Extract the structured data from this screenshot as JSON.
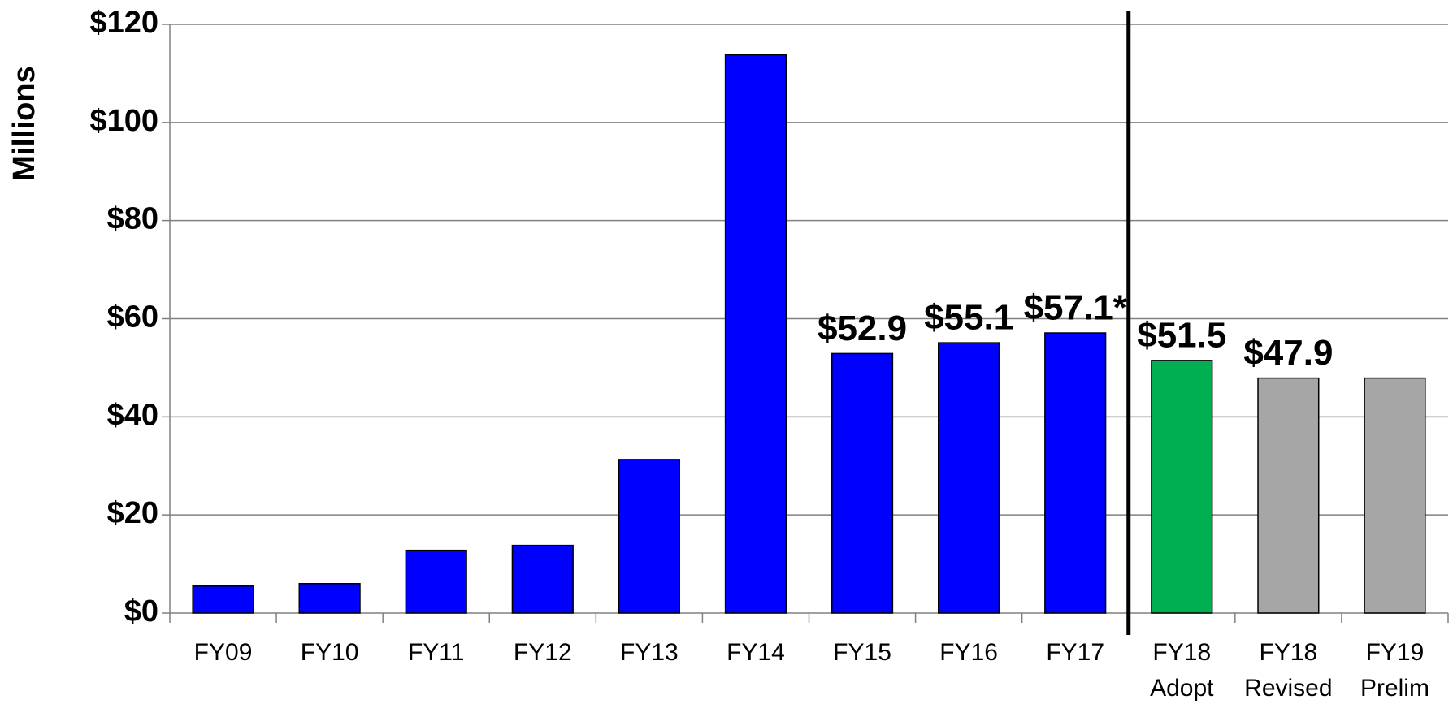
{
  "chart_data": {
    "type": "bar",
    "y_label": "Millions",
    "categories": [
      [
        "FY09"
      ],
      [
        "FY10"
      ],
      [
        "FY11"
      ],
      [
        "FY12"
      ],
      [
        "FY13"
      ],
      [
        "FY14"
      ],
      [
        "FY15"
      ],
      [
        "FY16"
      ],
      [
        "FY17"
      ],
      [
        "FY18",
        "Adopt"
      ],
      [
        "FY18",
        "Revised"
      ],
      [
        "FY19",
        "Prelim"
      ]
    ],
    "values": [
      5.5,
      6.0,
      12.8,
      13.8,
      31.3,
      113.8,
      52.9,
      55.1,
      57.1,
      51.5,
      47.9,
      47.9
    ],
    "value_labels": [
      null,
      null,
      null,
      null,
      null,
      null,
      "$52.9",
      "$55.1",
      "$57.1*",
      "$51.5",
      "$47.9",
      null
    ],
    "colors": [
      "#0000ff",
      "#0000ff",
      "#0000ff",
      "#0000ff",
      "#0000ff",
      "#0000ff",
      "#0000ff",
      "#0000ff",
      "#0000ff",
      "#00b050",
      "#a6a6a6",
      "#a6a6a6"
    ],
    "ylim": [
      0,
      120
    ],
    "yticks": [
      {
        "value": 0,
        "label": "$0"
      },
      {
        "value": 20,
        "label": "$20"
      },
      {
        "value": 40,
        "label": "$40"
      },
      {
        "value": 60,
        "label": "$60"
      },
      {
        "value": 80,
        "label": "$80"
      },
      {
        "value": 100,
        "label": "$100"
      },
      {
        "value": 120,
        "label": "$120"
      }
    ],
    "grid": true
  }
}
